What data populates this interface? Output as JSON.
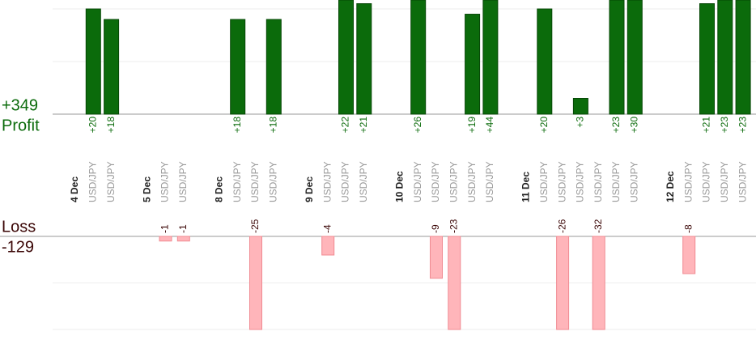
{
  "chart_data": {
    "type": "bar",
    "profit": {
      "name": "Profit",
      "total": {
        "value": 349,
        "label": "+349"
      },
      "color": "#0b6b0b",
      "ylim": [
        0,
        21.7
      ],
      "gridlines": [
        10,
        20
      ]
    },
    "loss": {
      "name": "Loss",
      "total": -129,
      "color": "#ffb5ba",
      "ylim": [
        0,
        -20
      ],
      "gridlines": [
        -10,
        -20
      ]
    },
    "groups": [
      {
        "date": "4 Dec",
        "trades": [
          {
            "pair": "USD/JPY",
            "value": 20,
            "value_label": "+20"
          },
          {
            "pair": "USD/JPY",
            "value": 18,
            "value_label": "+18"
          }
        ]
      },
      {
        "date": "5 Dec",
        "trades": [
          {
            "pair": "USD/JPY",
            "value": -1
          },
          {
            "pair": "USD/JPY",
            "value": -1
          }
        ]
      },
      {
        "date": "8 Dec",
        "trades": [
          {
            "pair": "USD/JPY",
            "value": 18,
            "value_label": "+18"
          },
          {
            "pair": "USD/JPY",
            "value": -25
          },
          {
            "pair": "USD/JPY",
            "value": 18,
            "value_label": "+18"
          }
        ]
      },
      {
        "date": "9 Dec",
        "trades": [
          {
            "pair": "USD/JPY",
            "value": -4
          },
          {
            "pair": "USD/JPY",
            "value": 22,
            "value_label": "+22"
          },
          {
            "pair": "USD/JPY",
            "value": 21,
            "value_label": "+21"
          }
        ]
      },
      {
        "date": "10 Dec",
        "trades": [
          {
            "pair": "USD/JPY",
            "value": 26,
            "value_label": "+26"
          },
          {
            "pair": "USD/JPY",
            "value": -9
          },
          {
            "pair": "USD/JPY",
            "value": -23
          },
          {
            "pair": "USD/JPY",
            "value": 19,
            "value_label": "+19"
          },
          {
            "pair": "USD/JPY",
            "value": 44,
            "value_label": "+44"
          }
        ]
      },
      {
        "date": "11 Dec",
        "trades": [
          {
            "pair": "USD/JPY",
            "value": 20,
            "value_label": "+20"
          },
          {
            "pair": "USD/JPY",
            "value": -26
          },
          {
            "pair": "USD/JPY",
            "value": 3,
            "value_label": "+3"
          },
          {
            "pair": "USD/JPY",
            "value": -32
          },
          {
            "pair": "USD/JPY",
            "value": 23,
            "value_label": "+23"
          },
          {
            "pair": "USD/JPY",
            "value": 30,
            "value_label": "+30"
          }
        ]
      },
      {
        "date": "12 Dec",
        "trades": [
          {
            "pair": "USD/JPY",
            "value": -8
          },
          {
            "pair": "USD/JPY",
            "value": 21,
            "value_label": "+21"
          },
          {
            "pair": "USD/JPY",
            "value": 23,
            "value_label": "+23"
          },
          {
            "pair": "USD/JPY",
            "value": 23,
            "value_label": "+23"
          }
        ]
      }
    ]
  }
}
